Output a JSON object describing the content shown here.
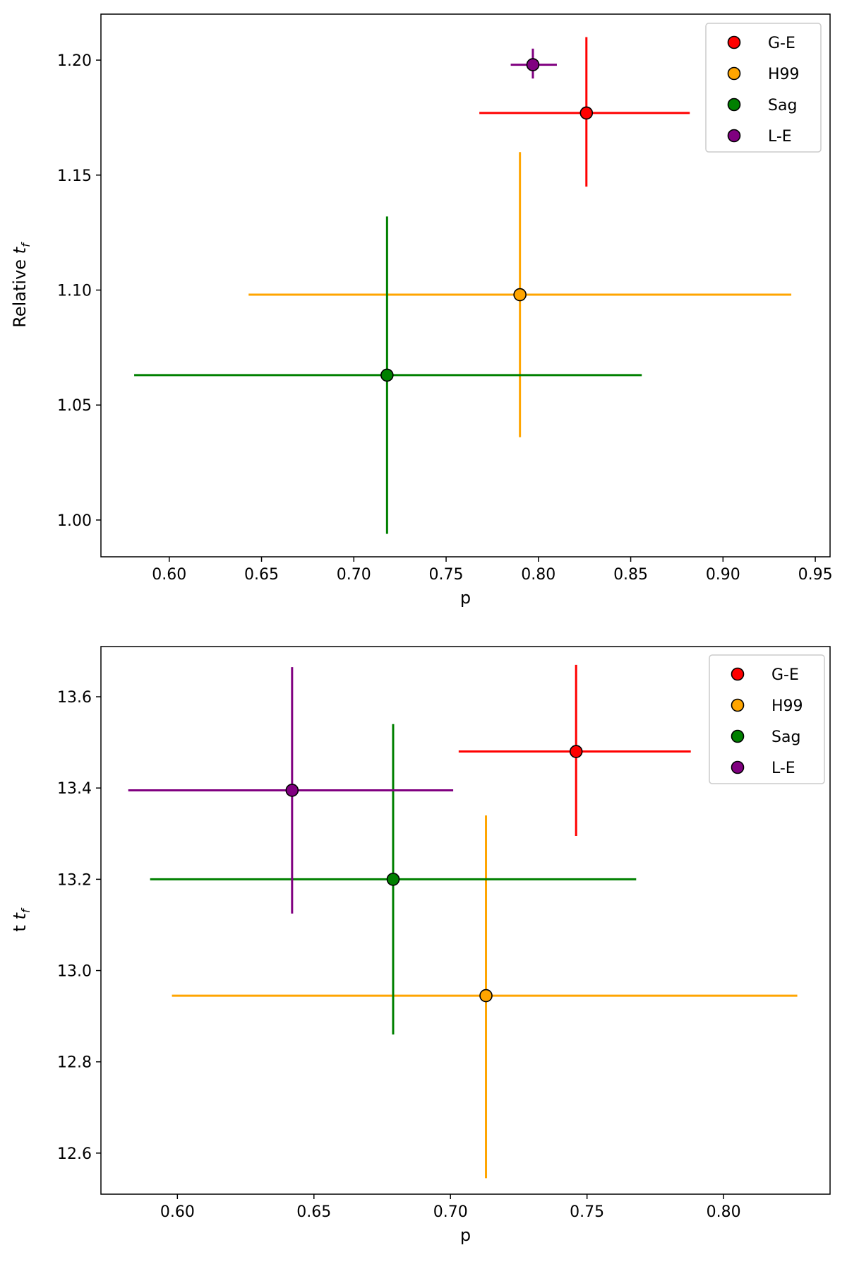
{
  "chart_data": [
    {
      "type": "scatter",
      "title": "",
      "xlabel": "p",
      "ylabel": "Relative",
      "ylabel_sub": "f",
      "xlim": [
        0.563,
        0.958
      ],
      "ylim": [
        0.984,
        1.22
      ],
      "xticks": [
        0.6,
        0.65,
        0.7,
        0.75,
        0.8,
        0.85,
        0.9,
        0.95
      ],
      "xtick_labels": [
        "0.60",
        "0.65",
        "0.70",
        "0.75",
        "0.80",
        "0.85",
        "0.90",
        "0.95"
      ],
      "yticks": [
        1.0,
        1.05,
        1.1,
        1.15,
        1.2
      ],
      "ytick_labels": [
        "1.00",
        "1.05",
        "1.10",
        "1.15",
        "1.20"
      ],
      "legend_position": "top-right",
      "series": [
        {
          "name": "G-E",
          "color": "#ff0000",
          "x": 0.826,
          "y": 1.177,
          "xerr": [
            0.768,
            0.882
          ],
          "yerr": [
            1.145,
            1.21
          ]
        },
        {
          "name": "H99",
          "color": "#ffa500",
          "x": 0.79,
          "y": 1.098,
          "xerr": [
            0.643,
            0.937
          ],
          "yerr": [
            1.036,
            1.16
          ]
        },
        {
          "name": "Sag",
          "color": "#008000",
          "x": 0.718,
          "y": 1.063,
          "xerr": [
            0.581,
            0.856
          ],
          "yerr": [
            0.994,
            1.132
          ]
        },
        {
          "name": "L-E",
          "color": "#800080",
          "x": 0.797,
          "y": 1.198,
          "xerr": [
            0.785,
            0.81
          ],
          "yerr": [
            1.192,
            1.205
          ]
        }
      ]
    },
    {
      "type": "scatter",
      "title": "",
      "xlabel": "p",
      "ylabel": "t",
      "ylabel_sub": "f",
      "xlim": [
        0.572,
        0.839
      ],
      "ylim": [
        12.51,
        13.71
      ],
      "xticks": [
        0.6,
        0.65,
        0.7,
        0.75,
        0.8
      ],
      "xtick_labels": [
        "0.60",
        "0.65",
        "0.70",
        "0.75",
        "0.80"
      ],
      "yticks": [
        12.6,
        12.8,
        13.0,
        13.2,
        13.4,
        13.6
      ],
      "ytick_labels": [
        "12.6",
        "12.8",
        "13.0",
        "13.2",
        "13.4",
        "13.6"
      ],
      "legend_position": "top-right",
      "series": [
        {
          "name": "G-E",
          "color": "#ff0000",
          "x": 0.746,
          "y": 13.48,
          "xerr": [
            0.703,
            0.788
          ],
          "yerr": [
            13.295,
            13.67
          ]
        },
        {
          "name": "H99",
          "color": "#ffa500",
          "x": 0.713,
          "y": 12.945,
          "xerr": [
            0.598,
            0.827
          ],
          "yerr": [
            12.545,
            13.34
          ]
        },
        {
          "name": "Sag",
          "color": "#008000",
          "x": 0.679,
          "y": 13.2,
          "xerr": [
            0.59,
            0.768
          ],
          "yerr": [
            12.86,
            13.54
          ]
        },
        {
          "name": "L-E",
          "color": "#800080",
          "x": 0.642,
          "y": 13.395,
          "xerr": [
            0.582,
            0.701
          ],
          "yerr": [
            13.125,
            13.665
          ]
        }
      ]
    }
  ]
}
